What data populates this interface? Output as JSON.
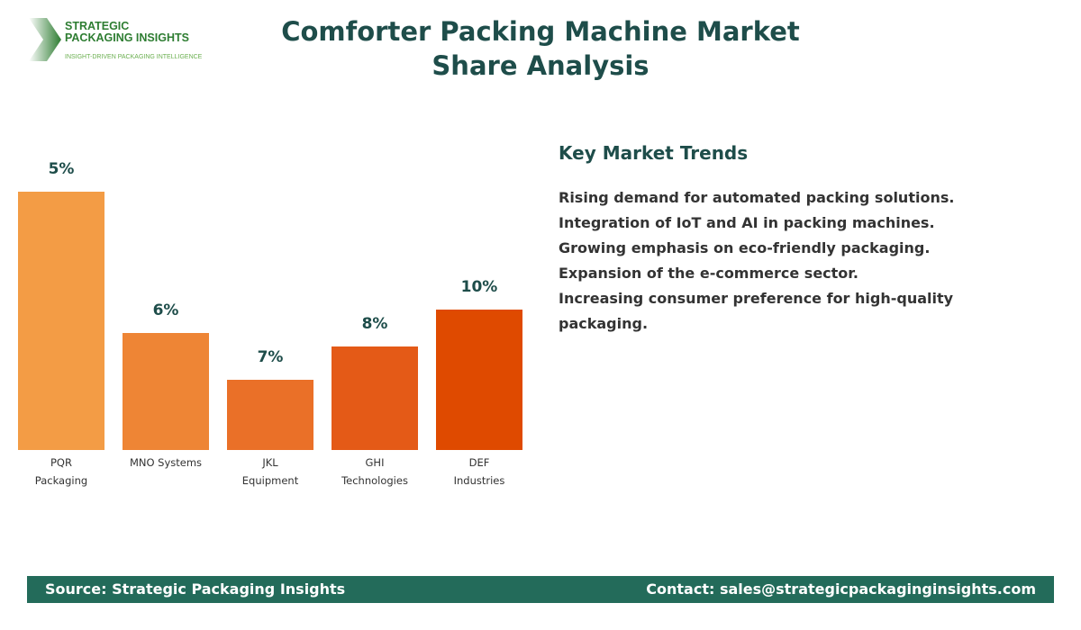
{
  "logo": {
    "line1": "STRATEGIC",
    "line2": "PACKAGING INSIGHTS",
    "tagline": "INSIGHT-DRIVEN PACKAGING INTELLIGENCE"
  },
  "title": "Comforter Packing Machine Market Share Analysis",
  "chart_data": {
    "type": "bar",
    "categories": [
      "PQR Packaging",
      "MNO Systems",
      "JKL Equipment",
      "GHI Technologies",
      "DEF Industries"
    ],
    "category_lines": [
      [
        "PQR",
        "Packaging"
      ],
      [
        "MNO Systems"
      ],
      [
        "JKL",
        "Equipment"
      ],
      [
        "GHI",
        "Technologies"
      ],
      [
        "DEF",
        "Industries"
      ]
    ],
    "values": [
      5,
      6,
      7,
      8,
      10
    ],
    "data_labels": [
      "5%",
      "6%",
      "7%",
      "8%",
      "10%"
    ],
    "colors": [
      "#F39C45",
      "#EE8535",
      "#EA7028",
      "#E45A17",
      "#DF4A00"
    ],
    "title": "",
    "xlabel": "",
    "ylabel": "",
    "grid": false
  },
  "trends": {
    "heading": "Key Market Trends",
    "items": [
      "Rising demand for automated packing solutions.",
      "Integration of IoT and AI in packing machines.",
      "Growing emphasis on eco-friendly packaging.",
      "Expansion of the e-commerce sector.",
      "Increasing consumer preference for high-quality packaging."
    ]
  },
  "footer": {
    "source": "Source: Strategic Packaging Insights",
    "contact": "Contact: sales@strategicpackaginginsights.com"
  }
}
